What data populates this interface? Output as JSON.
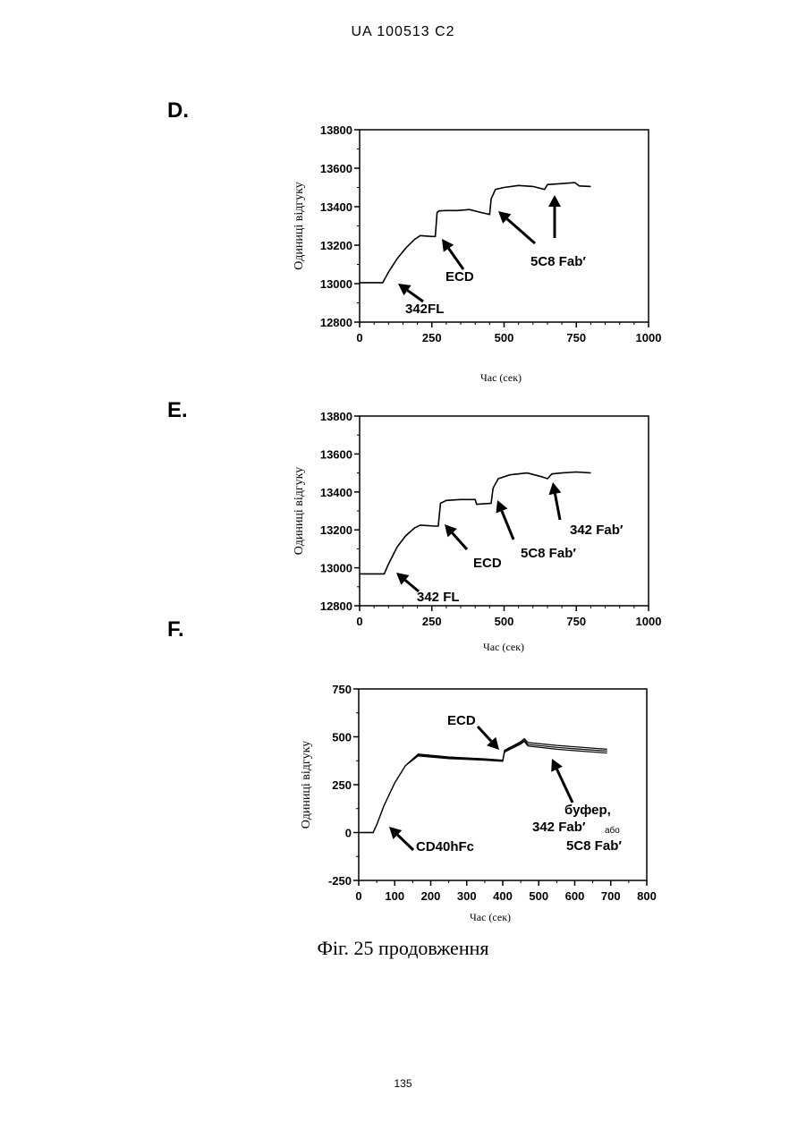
{
  "header": {
    "doc_id": "UA   100513   C2"
  },
  "caption": "Фіг. 25 продовження",
  "page_number": "135",
  "chart_data": [
    {
      "panel": "D.",
      "type": "line",
      "xlabel": "Час (сек)",
      "ylabel": "Одиниці відгуку",
      "xlim": [
        0,
        1000
      ],
      "ylim": [
        12800,
        13800
      ],
      "xticks": [
        "0",
        "250",
        "500",
        "750",
        "1000"
      ],
      "yticks": [
        "12800",
        "13000",
        "13200",
        "13400",
        "13600",
        "13800"
      ],
      "series": [
        {
          "values": [
            [
              0,
              13005
            ],
            [
              80,
              13005
            ],
            [
              100,
              13060
            ],
            [
              130,
              13130
            ],
            [
              160,
              13185
            ],
            [
              190,
              13230
            ],
            [
              210,
              13250
            ],
            [
              250,
              13245
            ],
            [
              262,
              13245
            ],
            [
              268,
              13370
            ],
            [
              275,
              13378
            ],
            [
              300,
              13380
            ],
            [
              340,
              13380
            ],
            [
              380,
              13385
            ],
            [
              420,
              13370
            ],
            [
              450,
              13360
            ],
            [
              455,
              13440
            ],
            [
              470,
              13490
            ],
            [
              500,
              13500
            ],
            [
              550,
              13510
            ],
            [
              600,
              13505
            ],
            [
              640,
              13490
            ],
            [
              650,
              13515
            ],
            [
              700,
              13520
            ],
            [
              745,
              13525
            ],
            [
              760,
              13508
            ],
            [
              800,
              13505
            ]
          ]
        }
      ],
      "annotations": [
        "342FL",
        "ECD",
        "5C8 Fab′"
      ]
    },
    {
      "panel": "E.",
      "type": "line",
      "xlabel": "Час (сек)",
      "ylabel": "Одиниці відгуку",
      "xlim": [
        0,
        1000
      ],
      "ylim": [
        12800,
        13800
      ],
      "xticks": [
        "0",
        "250",
        "500",
        "750",
        "1000"
      ],
      "yticks": [
        "12800",
        "13000",
        "13200",
        "13400",
        "13600",
        "13800"
      ],
      "series": [
        {
          "values": [
            [
              0,
              12968
            ],
            [
              85,
              12968
            ],
            [
              100,
              13020
            ],
            [
              130,
              13110
            ],
            [
              160,
              13170
            ],
            [
              190,
              13210
            ],
            [
              210,
              13225
            ],
            [
              260,
              13220
            ],
            [
              272,
              13220
            ],
            [
              280,
              13340
            ],
            [
              300,
              13355
            ],
            [
              350,
              13360
            ],
            [
              400,
              13360
            ],
            [
              405,
              13335
            ],
            [
              455,
              13340
            ],
            [
              462,
              13420
            ],
            [
              480,
              13470
            ],
            [
              520,
              13490
            ],
            [
              580,
              13500
            ],
            [
              630,
              13480
            ],
            [
              650,
              13470
            ],
            [
              665,
              13495
            ],
            [
              700,
              13500
            ],
            [
              750,
              13505
            ],
            [
              800,
              13500
            ]
          ]
        }
      ],
      "annotations": [
        "342 FL",
        "ECD",
        "5C8 Fab′",
        "342 Fab′"
      ]
    },
    {
      "panel": "F.",
      "type": "line",
      "xlabel": "Час (сек)",
      "ylabel": "Одиниці відгуку",
      "xlim": [
        0,
        800
      ],
      "ylim": [
        -250,
        750
      ],
      "xticks": [
        "0",
        "100",
        "200",
        "300",
        "400",
        "500",
        "600",
        "700",
        "800"
      ],
      "yticks": [
        "-250",
        "0",
        "250",
        "500",
        "750"
      ],
      "series": [
        {
          "values": [
            [
              0,
              0
            ],
            [
              40,
              0
            ],
            [
              50,
              40
            ],
            [
              70,
              140
            ],
            [
              100,
              260
            ],
            [
              130,
              350
            ],
            [
              165,
              410
            ],
            [
              250,
              395
            ],
            [
              350,
              385
            ],
            [
              400,
              378
            ],
            [
              405,
              430
            ],
            [
              450,
              475
            ],
            [
              460,
              490
            ],
            [
              470,
              470
            ],
            [
              550,
              455
            ],
            [
              690,
              435
            ]
          ]
        },
        {
          "values": [
            [
              0,
              0
            ],
            [
              40,
              0
            ],
            [
              50,
              40
            ],
            [
              70,
              140
            ],
            [
              100,
              260
            ],
            [
              130,
              350
            ],
            [
              165,
              405
            ],
            [
              250,
              390
            ],
            [
              350,
              382
            ],
            [
              400,
              375
            ],
            [
              405,
              425
            ],
            [
              450,
              468
            ],
            [
              460,
              482
            ],
            [
              470,
              460
            ],
            [
              550,
              445
            ],
            [
              690,
              425
            ]
          ]
        },
        {
          "values": [
            [
              0,
              0
            ],
            [
              40,
              0
            ],
            [
              50,
              40
            ],
            [
              70,
              140
            ],
            [
              100,
              260
            ],
            [
              130,
              350
            ],
            [
              165,
              400
            ],
            [
              250,
              386
            ],
            [
              350,
              378
            ],
            [
              400,
              372
            ],
            [
              405,
              420
            ],
            [
              450,
              462
            ],
            [
              460,
              476
            ],
            [
              470,
              452
            ],
            [
              550,
              435
            ],
            [
              690,
              415
            ]
          ]
        }
      ],
      "annotations": [
        "ECD",
        "CD40hFc",
        "буфер,",
        "342 Fab′",
        "або",
        "5C8 Fab′"
      ]
    }
  ]
}
